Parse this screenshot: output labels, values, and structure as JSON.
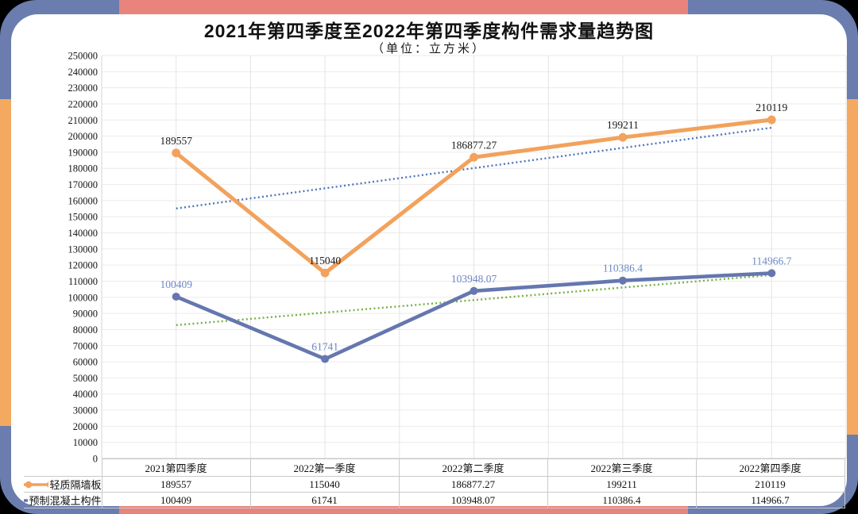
{
  "page": {
    "background": "#000000"
  },
  "frame": {
    "blue": "#6A7DAE",
    "coral": "#E8847B",
    "orange": "#F3A95F",
    "inner_background": "#FFFFFF"
  },
  "header": {
    "title": "2021年第四季度至2022年第四季度构件需求量趋势图",
    "subtitle": "（单位：立方米）"
  },
  "chart_data": {
    "type": "line",
    "title": "2021年第四季度至2022年第四季度构件需求量趋势图",
    "subtitle": "（单位：立方米）",
    "categories": [
      "2021第四季度",
      "2022第一季度",
      "2022第二季度",
      "2022第三季度",
      "2022第四季度"
    ],
    "series": [
      {
        "name": "轻质隔墙板",
        "values": [
          189557,
          115040,
          186877.27,
          199211,
          210119
        ],
        "labels": [
          "189557",
          "115040",
          "186877.27",
          "199211",
          "210119"
        ],
        "color": "#F2A25C",
        "label_color": "#1A1A1A",
        "legend_marker": "dot-line-dot"
      },
      {
        "name": "预制混凝土构件",
        "values": [
          100409,
          61741,
          103948.07,
          110386.4,
          114966.7
        ],
        "labels": [
          "100409",
          "61741",
          "103948.07",
          "110386.4",
          "114966.7"
        ],
        "color": "#6577AE",
        "label_color": "#6C87C3",
        "legend_marker": "line-dot"
      }
    ],
    "trendlines": [
      {
        "for_series": "轻质隔墙板",
        "style": "dotted",
        "color": "#4F74BC",
        "start_value": 155101.85,
        "end_value": 205219.85
      },
      {
        "for_series": "预制混凝土构件",
        "style": "dotted",
        "color": "#76B041",
        "start_value": 82738.07,
        "end_value": 113842.39
      }
    ],
    "ylim": [
      0,
      250000
    ],
    "ytick_step": 10000,
    "grid": true,
    "legend_position": "table-left-column"
  }
}
